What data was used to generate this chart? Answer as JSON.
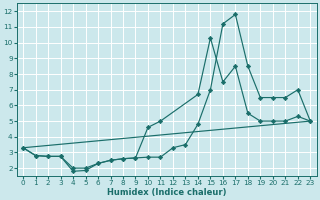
{
  "xlabel": "Humidex (Indice chaleur)",
  "background_color": "#cce8ec",
  "grid_color": "#ffffff",
  "line_color": "#1a6e6a",
  "xlim": [
    -0.5,
    23.5
  ],
  "ylim": [
    1.5,
    12.5
  ],
  "xticks": [
    0,
    1,
    2,
    3,
    4,
    5,
    6,
    7,
    8,
    9,
    10,
    11,
    12,
    13,
    14,
    15,
    16,
    17,
    18,
    19,
    20,
    21,
    22,
    23
  ],
  "yticks": [
    2,
    3,
    4,
    5,
    6,
    7,
    8,
    9,
    10,
    11,
    12
  ],
  "line1_x": [
    0,
    1,
    2,
    3,
    4,
    5,
    6,
    7,
    8,
    9,
    10,
    11,
    12,
    13,
    14,
    15,
    16,
    17,
    18,
    19,
    20,
    21,
    22,
    23
  ],
  "line1_y": [
    3.3,
    2.8,
    2.75,
    2.75,
    1.8,
    1.85,
    2.3,
    2.5,
    2.6,
    2.65,
    2.7,
    2.7,
    3.3,
    3.5,
    4.8,
    7.0,
    11.2,
    11.8,
    8.5,
    6.5,
    6.5,
    6.5,
    7.0,
    5.0
  ],
  "line2_x": [
    0,
    1,
    2,
    3,
    4,
    5,
    6,
    7,
    8,
    9,
    10,
    11,
    14,
    15,
    16,
    17,
    18,
    19,
    20,
    21,
    22,
    23
  ],
  "line2_y": [
    3.3,
    2.8,
    2.75,
    2.75,
    2.0,
    2.0,
    2.3,
    2.5,
    2.6,
    2.65,
    4.6,
    5.0,
    6.7,
    10.3,
    7.5,
    8.5,
    5.5,
    5.0,
    5.0,
    5.0,
    5.3,
    5.0
  ],
  "line3_x": [
    0,
    23
  ],
  "line3_y": [
    3.3,
    5.0
  ],
  "figsize": [
    3.2,
    2.0
  ],
  "dpi": 100
}
